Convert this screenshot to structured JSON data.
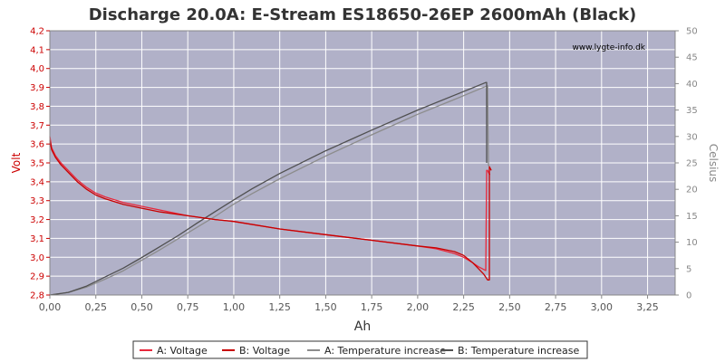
{
  "chart_data": {
    "type": "line",
    "title": "Discharge 20.0A: E-Stream ES18650-26EP 2600mAh (Black)",
    "watermark": "www.lygte-info.dk",
    "xlabel": "Ah",
    "ylabel_left": "Volt",
    "ylabel_right": "Celsius",
    "xlim": [
      0,
      3.4
    ],
    "ylim_left": [
      2.8,
      4.2
    ],
    "ylim_right": [
      0,
      50
    ],
    "x_ticks": [
      "0,00",
      "0,25",
      "0,50",
      "0,75",
      "1,00",
      "1,25",
      "1,50",
      "1,75",
      "2,00",
      "2,25",
      "2,50",
      "2,75",
      "3,00",
      "3,25"
    ],
    "y_left_ticks": [
      "2,8",
      "2,9",
      "3,0",
      "3,1",
      "3,2",
      "3,3",
      "3,4",
      "3,5",
      "3,6",
      "3,7",
      "3,8",
      "3,9",
      "4,0",
      "4,1",
      "4,2"
    ],
    "y_right_ticks": [
      "0",
      "5",
      "10",
      "15",
      "20",
      "25",
      "30",
      "35",
      "40",
      "45",
      "50"
    ],
    "grid": true,
    "legend_position": "bottom",
    "colors": {
      "plot_bg": "#b1b1c8",
      "grid": "#ffffff",
      "voltage_a": "#e8283c",
      "voltage_b": "#c80000",
      "temp_a": "#8c8c8c",
      "temp_b": "#505050",
      "left_axis": "#cc0000",
      "right_axis": "#888888"
    },
    "series": [
      {
        "name": "A: Voltage",
        "axis": "left",
        "color": "#e8283c",
        "x": [
          0,
          0.01,
          0.03,
          0.06,
          0.1,
          0.15,
          0.2,
          0.25,
          0.3,
          0.4,
          0.5,
          0.6,
          0.75,
          0.9,
          1.0,
          1.25,
          1.5,
          1.75,
          2.0,
          2.1,
          2.2,
          2.25,
          2.3,
          2.33,
          2.36,
          2.37,
          2.375,
          2.38,
          2.39,
          2.395
        ],
        "y": [
          3.64,
          3.58,
          3.54,
          3.5,
          3.46,
          3.41,
          3.37,
          3.34,
          3.32,
          3.29,
          3.27,
          3.25,
          3.22,
          3.2,
          3.19,
          3.15,
          3.12,
          3.09,
          3.06,
          3.045,
          3.02,
          3.0,
          2.97,
          2.95,
          2.935,
          2.93,
          3.46,
          3.46,
          3.44,
          3.44
        ]
      },
      {
        "name": "B: Voltage",
        "axis": "left",
        "color": "#c80000",
        "x": [
          0,
          0.01,
          0.03,
          0.06,
          0.1,
          0.15,
          0.2,
          0.25,
          0.3,
          0.4,
          0.5,
          0.6,
          0.75,
          0.9,
          1.0,
          1.25,
          1.5,
          1.75,
          2.0,
          2.1,
          2.2,
          2.25,
          2.3,
          2.33,
          2.36,
          2.38,
          2.39,
          2.39,
          2.4
        ],
        "y": [
          3.62,
          3.57,
          3.53,
          3.49,
          3.45,
          3.4,
          3.36,
          3.33,
          3.31,
          3.28,
          3.26,
          3.24,
          3.22,
          3.2,
          3.19,
          3.15,
          3.12,
          3.09,
          3.06,
          3.05,
          3.03,
          3.01,
          2.97,
          2.94,
          2.91,
          2.88,
          2.88,
          3.48,
          3.46
        ]
      },
      {
        "name": "A: Temperature increase",
        "axis": "right",
        "color": "#8c8c8c",
        "x": [
          0,
          0.1,
          0.2,
          0.3,
          0.4,
          0.5,
          0.6,
          0.7,
          0.8,
          0.9,
          1.0,
          1.1,
          1.25,
          1.5,
          1.75,
          2.0,
          2.2,
          2.38,
          2.385,
          2.39
        ],
        "y": [
          0,
          0.5,
          1.5,
          3.0,
          4.6,
          6.6,
          8.6,
          10.7,
          12.8,
          14.9,
          17.2,
          19.2,
          22.0,
          26.3,
          30.3,
          34.2,
          37.0,
          39.6,
          24.5,
          24.5
        ]
      },
      {
        "name": "B: Temperature increase",
        "axis": "right",
        "color": "#505050",
        "x": [
          0,
          0.1,
          0.2,
          0.3,
          0.4,
          0.5,
          0.6,
          0.7,
          0.8,
          0.9,
          1.0,
          1.1,
          1.25,
          1.5,
          1.75,
          2.0,
          2.2,
          2.37,
          2.375,
          2.375
        ],
        "y": [
          0,
          0.5,
          1.7,
          3.4,
          5.1,
          7.1,
          9.2,
          11.3,
          13.6,
          15.8,
          18.0,
          20.1,
          23.0,
          27.3,
          31.2,
          35.0,
          37.8,
          40.2,
          40.2,
          25.0
        ]
      }
    ]
  }
}
